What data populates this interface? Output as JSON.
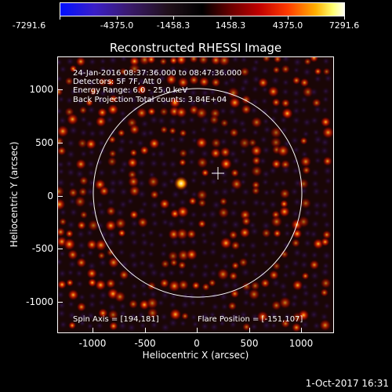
{
  "colorbar": {
    "tick_labels": [
      "-7291.6",
      "-4375.0",
      "-1458.3",
      "1458.3",
      "4375.0",
      "7291.6"
    ]
  },
  "plot": {
    "title": "Reconstructed RHESSI Image",
    "info_lines": [
      "24-Jan-2016 08:37:36.000 to 08:47:36.000",
      "Detectors: 5F 7F, Att 0",
      "Energy Range: 6.0 - 25.0 keV",
      "Back Projection    Total counts: 3.84E+04"
    ],
    "spin_axis": "Spin Axis = [194,181]",
    "flare_position": "Flare Position = [-151,107]",
    "x_tick_labels": [
      "-1000",
      "-500",
      "0",
      "500",
      "1000"
    ],
    "y_tick_labels": [
      "1000",
      "500",
      "0",
      "-500",
      "-1000"
    ],
    "xlabel": "Heliocentric X (arcsec)",
    "ylabel": "Heliocentric Y (arcsec)"
  },
  "footer": {
    "date": "1-Oct-2017 16:31"
  },
  "colors": {
    "background": "#000000",
    "foreground": "#ffffff",
    "limb_circle": "#ffffff"
  }
}
